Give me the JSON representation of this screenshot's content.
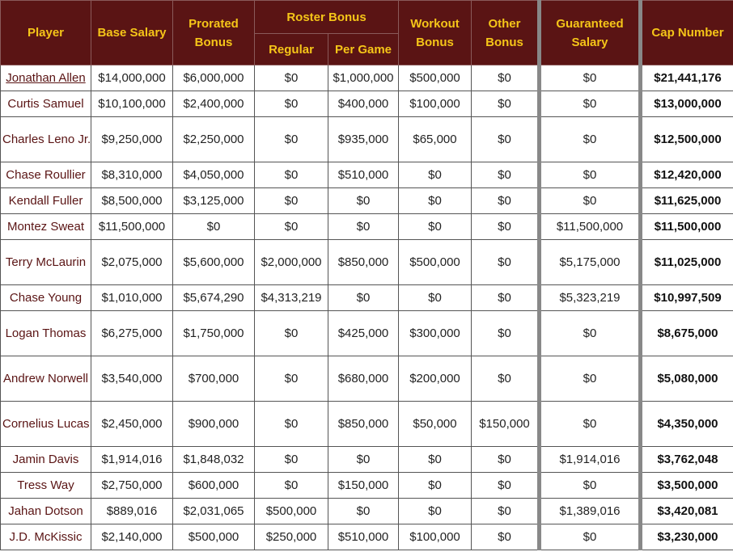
{
  "header": {
    "player": "Player",
    "base_salary": "Base Salary",
    "prorated_bonus": "Prorated Bonus",
    "roster_bonus": "Roster Bonus",
    "regular": "Regular",
    "per_game": "Per Game",
    "workout_bonus": "Workout Bonus",
    "other_bonus": "Other Bonus",
    "guaranteed_salary": "Guaranteed Salary",
    "cap_number": "Cap Number"
  },
  "rows": [
    {
      "player": "Jonathan Allen",
      "base": "$14,000,000",
      "prorated": "$6,000,000",
      "regular": "$0",
      "per_game": "$1,000,000",
      "workout": "$500,000",
      "other": "$0",
      "guaranteed": "$0",
      "cap": "$21,441,176"
    },
    {
      "player": "Curtis Samuel",
      "base": "$10,100,000",
      "prorated": "$2,400,000",
      "regular": "$0",
      "per_game": "$400,000",
      "workout": "$100,000",
      "other": "$0",
      "guaranteed": "$0",
      "cap": "$13,000,000"
    },
    {
      "player": "Charles Leno Jr.",
      "base": "$9,250,000",
      "prorated": "$2,250,000",
      "regular": "$0",
      "per_game": "$935,000",
      "workout": "$65,000",
      "other": "$0",
      "guaranteed": "$0",
      "cap": "$12,500,000"
    },
    {
      "player": "Chase Roullier",
      "base": "$8,310,000",
      "prorated": "$4,050,000",
      "regular": "$0",
      "per_game": "$510,000",
      "workout": "$0",
      "other": "$0",
      "guaranteed": "$0",
      "cap": "$12,420,000"
    },
    {
      "player": "Kendall Fuller",
      "base": "$8,500,000",
      "prorated": "$3,125,000",
      "regular": "$0",
      "per_game": "$0",
      "workout": "$0",
      "other": "$0",
      "guaranteed": "$0",
      "cap": "$11,625,000"
    },
    {
      "player": "Montez Sweat",
      "base": "$11,500,000",
      "prorated": "$0",
      "regular": "$0",
      "per_game": "$0",
      "workout": "$0",
      "other": "$0",
      "guaranteed": "$11,500,000",
      "cap": "$11,500,000"
    },
    {
      "player": "Terry McLaurin",
      "base": "$2,075,000",
      "prorated": "$5,600,000",
      "regular": "$2,000,000",
      "per_game": "$850,000",
      "workout": "$500,000",
      "other": "$0",
      "guaranteed": "$5,175,000",
      "cap": "$11,025,000"
    },
    {
      "player": "Chase Young",
      "base": "$1,010,000",
      "prorated": "$5,674,290",
      "regular": "$4,313,219",
      "per_game": "$0",
      "workout": "$0",
      "other": "$0",
      "guaranteed": "$5,323,219",
      "cap": "$10,997,509"
    },
    {
      "player": "Logan Thomas",
      "base": "$6,275,000",
      "prorated": "$1,750,000",
      "regular": "$0",
      "per_game": "$425,000",
      "workout": "$300,000",
      "other": "$0",
      "guaranteed": "$0",
      "cap": "$8,675,000"
    },
    {
      "player": "Andrew Norwell",
      "base": "$3,540,000",
      "prorated": "$700,000",
      "regular": "$0",
      "per_game": "$680,000",
      "workout": "$200,000",
      "other": "$0",
      "guaranteed": "$0",
      "cap": "$5,080,000"
    },
    {
      "player": "Cornelius Lucas",
      "base": "$2,450,000",
      "prorated": "$900,000",
      "regular": "$0",
      "per_game": "$850,000",
      "workout": "$50,000",
      "other": "$150,000",
      "guaranteed": "$0",
      "cap": "$4,350,000"
    },
    {
      "player": "Jamin Davis",
      "base": "$1,914,016",
      "prorated": "$1,848,032",
      "regular": "$0",
      "per_game": "$0",
      "workout": "$0",
      "other": "$0",
      "guaranteed": "$1,914,016",
      "cap": "$3,762,048"
    },
    {
      "player": "Tress Way",
      "base": "$2,750,000",
      "prorated": "$600,000",
      "regular": "$0",
      "per_game": "$150,000",
      "workout": "$0",
      "other": "$0",
      "guaranteed": "$0",
      "cap": "$3,500,000"
    },
    {
      "player": "Jahan Dotson",
      "base": "$889,016",
      "prorated": "$2,031,065",
      "regular": "$500,000",
      "per_game": "$0",
      "workout": "$0",
      "other": "$0",
      "guaranteed": "$1,389,016",
      "cap": "$3,420,081"
    },
    {
      "player": "J.D. McKissic",
      "base": "$2,140,000",
      "prorated": "$500,000",
      "regular": "$250,000",
      "per_game": "$510,000",
      "workout": "$100,000",
      "other": "$0",
      "guaranteed": "$0",
      "cap": "$3,230,000"
    }
  ],
  "colors": {
    "header_bg": "#5a1414",
    "header_text": "#f5c518",
    "player_link": "#5a1414"
  }
}
